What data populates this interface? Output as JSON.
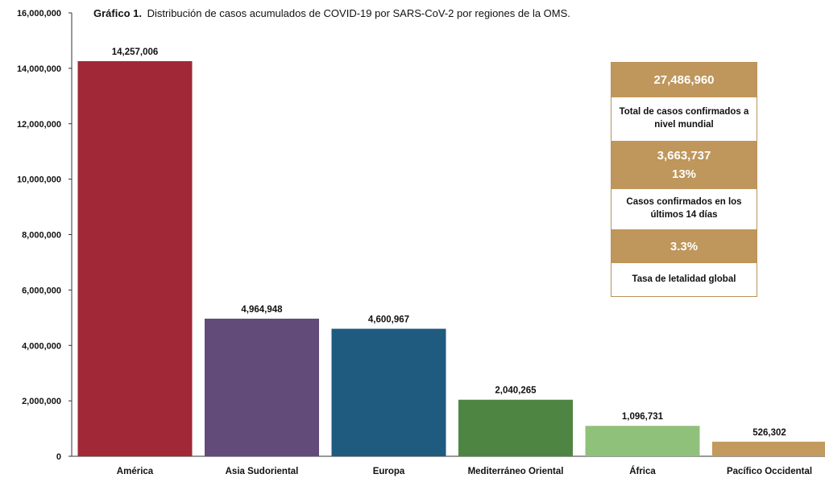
{
  "title": {
    "label": "Gráfico 1.",
    "text": "Distribución de casos acumulados de COVID-19 por SARS-CoV-2 por regiones de la OMS."
  },
  "chart_data": {
    "type": "bar",
    "title": "Gráfico 1. Distribución de casos acumulados de COVID-19 por SARS-CoV-2 por regiones de la OMS.",
    "categories": [
      "América",
      "Asia Sudoriental",
      "Europa",
      "Mediterráneo Oriental",
      "África",
      "Pacífico Occidental"
    ],
    "values": [
      14257006,
      4964948,
      4600967,
      2040265,
      1096731,
      526302
    ],
    "data_labels": [
      "14,257,006",
      "4,964,948",
      "4,600,967",
      "2,040,265",
      "1,096,731",
      "526,302"
    ],
    "bar_colors": [
      "#a12836",
      "#624a79",
      "#1f5a7f",
      "#4e8542",
      "#8fc17b",
      "#c39a5d"
    ],
    "ylim": [
      0,
      16000000
    ],
    "yticks": [
      0,
      2000000,
      4000000,
      6000000,
      8000000,
      10000000,
      12000000,
      14000000,
      16000000
    ],
    "ytick_labels": [
      "0",
      "2,000,000",
      "4,000,000",
      "6,000,000",
      "8,000,000",
      "10,000,000",
      "12,000,000",
      "14,000,000",
      "16,000,000"
    ],
    "xlabel": "",
    "ylabel": "",
    "grid": false,
    "legend": false
  },
  "stats_box": {
    "gold_color": "#bf965b",
    "total_cases_value": "27,486,960",
    "total_cases_label": "Total de casos confirmados a nivel mundial",
    "recent_cases_value": "3,663,737",
    "recent_cases_percent": "13%",
    "recent_cases_label": "Casos confirmados en los últimos 14 días",
    "lethality_value": "3.3%",
    "lethality_label": "Tasa de letalidad global"
  }
}
